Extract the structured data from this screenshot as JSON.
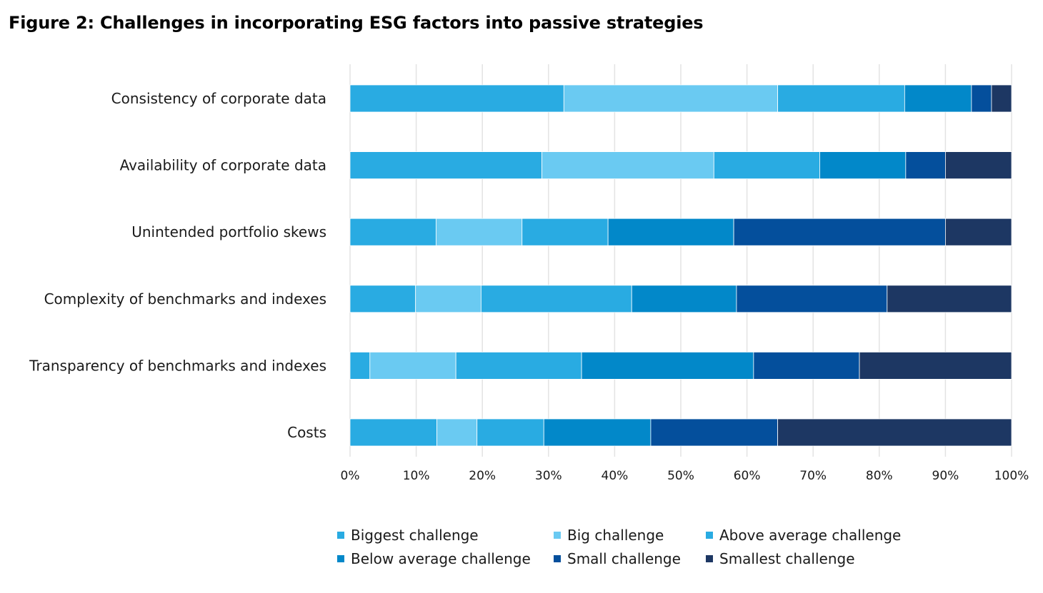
{
  "title": "Figure 2: Challenges in incorporating ESG factors into passive strategies",
  "chart_data": {
    "type": "bar",
    "orientation": "horizontal",
    "stacked": true,
    "categories": [
      "Consistency of corporate data",
      "Availability of corporate data",
      "Unintended portfolio skews",
      "Complexity of benchmarks and indexes",
      "Transparency of benchmarks and indexes",
      "Costs"
    ],
    "series": [
      {
        "name": "Biggest challenge",
        "color": "#29ABE2",
        "values": [
          32,
          29,
          13,
          10,
          3,
          13
        ]
      },
      {
        "name": "Big challenge",
        "color": "#6ACAF2",
        "values": [
          32,
          26,
          13,
          10,
          13,
          6
        ]
      },
      {
        "name": "Above average challenge",
        "color": "#29ABE2",
        "values": [
          19,
          16,
          13,
          23,
          19,
          10
        ]
      },
      {
        "name": "Below average challenge",
        "color": "#0288C9",
        "values": [
          10,
          13,
          19,
          16,
          26,
          16
        ]
      },
      {
        "name": "Small challenge",
        "color": "#044F9C",
        "values": [
          3,
          6,
          32,
          23,
          16,
          19
        ]
      },
      {
        "name": "Smallest challenge",
        "color": "#1D3763",
        "values": [
          3,
          10,
          10,
          19,
          23,
          35
        ]
      }
    ],
    "xticks": [
      "0%",
      "10%",
      "20%",
      "30%",
      "40%",
      "50%",
      "60%",
      "70%",
      "80%",
      "90%",
      "100%"
    ],
    "xlim": [
      0,
      100
    ],
    "grid": "vertical",
    "legend_position": "bottom"
  }
}
